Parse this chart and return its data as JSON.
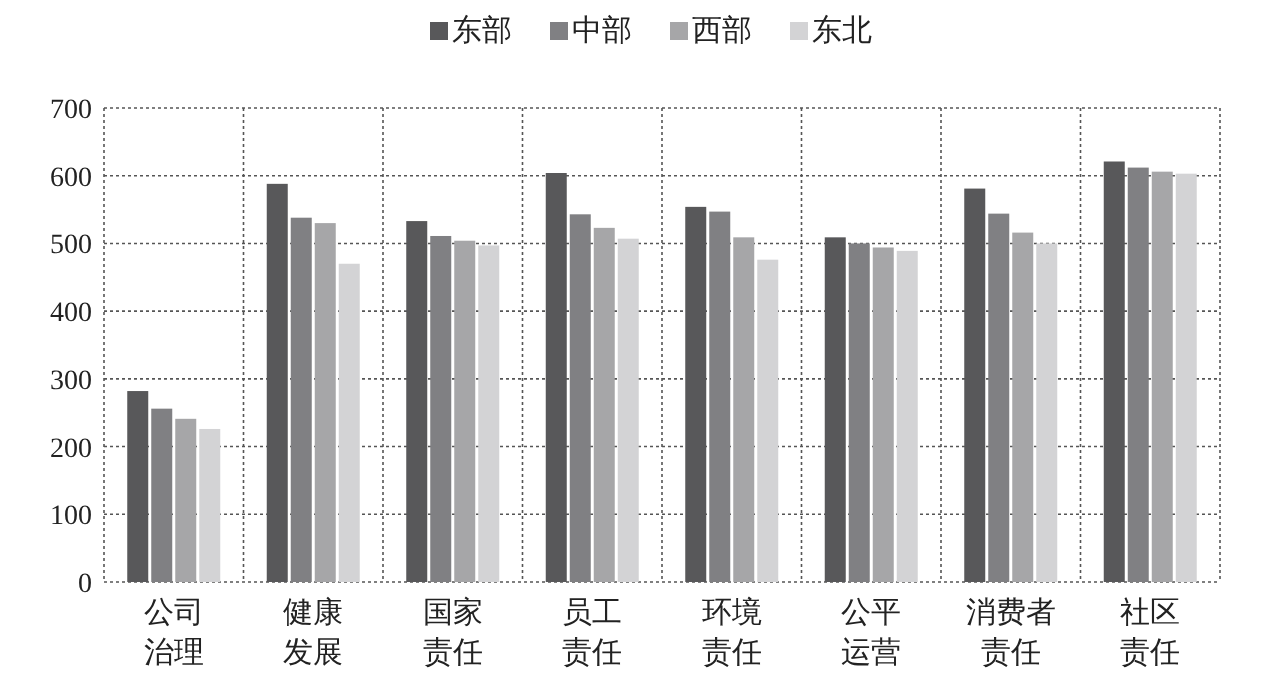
{
  "chart_data": {
    "type": "bar",
    "categories": [
      "公司治理",
      "健康发展",
      "国家责任",
      "员工责任",
      "环境责任",
      "公平运营",
      "消费者责任",
      "社区责任"
    ],
    "series": [
      {
        "name": "东部",
        "color": "#58585a",
        "values": [
          282,
          588,
          533,
          604,
          554,
          509,
          581,
          621
        ]
      },
      {
        "name": "中部",
        "color": "#808083",
        "values": [
          256,
          538,
          511,
          543,
          547,
          500,
          544,
          612
        ]
      },
      {
        "name": "西部",
        "color": "#a6a6a8",
        "values": [
          241,
          530,
          504,
          523,
          509,
          494,
          516,
          606
        ]
      },
      {
        "name": "东北",
        "color": "#d3d3d5",
        "values": [
          226,
          470,
          497,
          507,
          476,
          489,
          500,
          603
        ]
      }
    ],
    "ylim": [
      0,
      700
    ],
    "yticks": [
      0,
      100,
      200,
      300,
      400,
      500,
      600,
      700
    ],
    "grid": true,
    "legend": "top"
  }
}
